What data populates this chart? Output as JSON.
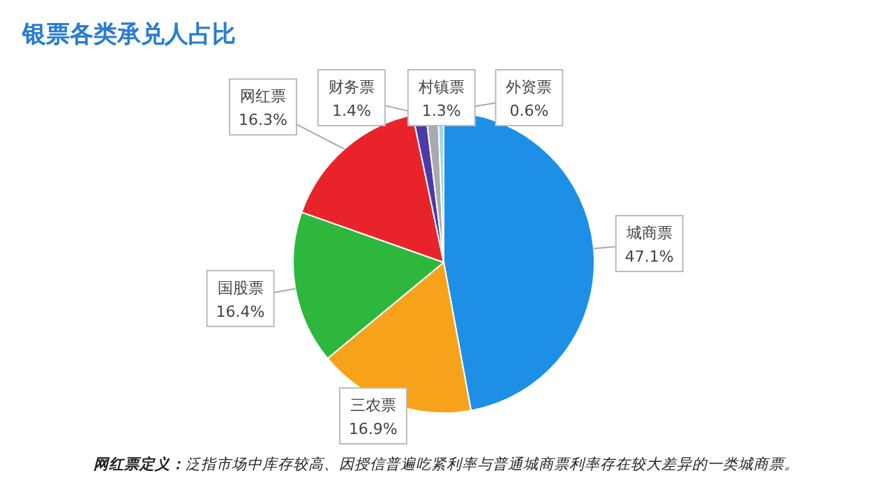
{
  "chart_data": {
    "type": "pie",
    "title": "银票各类承兑人占比",
    "categories": [
      "城商票",
      "三农票",
      "国股票",
      "网红票",
      "财务票",
      "村镇票",
      "外资票"
    ],
    "values": [
      47.1,
      16.9,
      16.4,
      16.3,
      1.4,
      1.3,
      0.6
    ],
    "colors": [
      "#1e8fe6",
      "#f7a21b",
      "#2db83d",
      "#e8242a",
      "#4b3aa8",
      "#aaaaaa",
      "#9dd6f2"
    ],
    "value_labels": [
      "47.1%",
      "16.9%",
      "16.4%",
      "16.3%",
      "1.4%",
      "1.3%",
      "0.6%"
    ],
    "legend": false,
    "annotations": [
      "网红票定义：泛指市场中库存较高、因授信普遍吃紧利率与普通城商票利率存在较大差异的一类城商票。"
    ]
  }
}
